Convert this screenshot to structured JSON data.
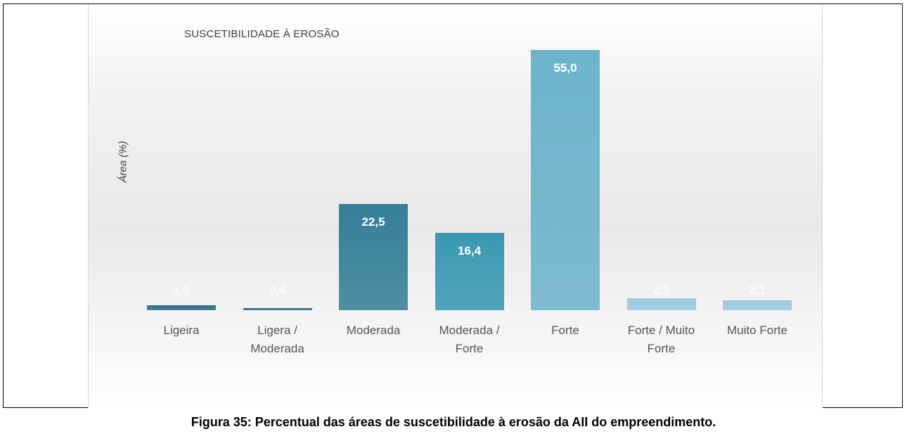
{
  "chart_data": {
    "type": "bar",
    "title": "SUSCETIBILIDADE À EROSÃO",
    "y_label": "Área (%)",
    "categories": [
      "Ligeira",
      "Ligera / Moderada",
      "Moderada",
      "Moderada / Forte",
      "Forte",
      "Forte / Muito Forte",
      "Muito Forte"
    ],
    "values": [
      1.0,
      0.4,
      22.5,
      16.4,
      55.0,
      2.5,
      2.1
    ],
    "value_labels": [
      "1,0",
      "0,4",
      "22,5",
      "16,4",
      "55,0",
      "2,5",
      "2,1"
    ],
    "colors": [
      "#2f6f86",
      "#2f6f86",
      "#357f97",
      "#3a98b3",
      "#6db3cb",
      "#9bcae0",
      "#9bcae0"
    ],
    "caption": "Figura 35: Percentual das áreas de suscetibilidade à erosão da AII do empreendimento."
  }
}
